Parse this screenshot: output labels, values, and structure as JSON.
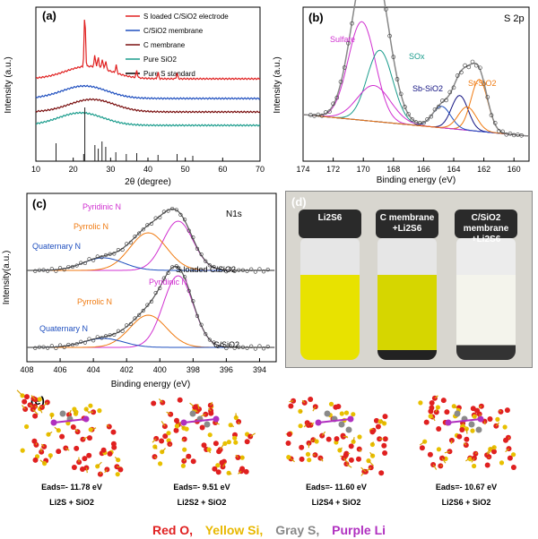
{
  "panels": {
    "a": {
      "label": "(a)",
      "xlabel": "2θ  (degree)",
      "ylabel": "Intensity  (a.u.)",
      "xticks": [
        "10",
        "20",
        "30",
        "40",
        "50",
        "60",
        "70"
      ],
      "legend": [
        "S loaded C/SiO2 electrode",
        "C/SiO2 membrane",
        "C membrane",
        "Pure SiO2",
        "Pure S standard"
      ]
    },
    "b": {
      "label": "(b)",
      "title": "S 2p",
      "xlabel": "Binding energy  (eV)",
      "ylabel": "Intensity (a.u.)",
      "xticks": [
        "174",
        "172",
        "170",
        "168",
        "166",
        "164",
        "162",
        "160"
      ],
      "annotations": [
        "Sulfate",
        "SOx",
        "Sb-SiO2",
        "St-SiO2"
      ]
    },
    "c": {
      "label": "(c)",
      "title": "N1s",
      "xlabel": "Binding energy (eV)",
      "ylabel": "Intensity(a.u.)",
      "xticks": [
        "408",
        "406",
        "404",
        "402",
        "400",
        "398",
        "396",
        "394"
      ],
      "annotations": [
        "Pyridinic N",
        "Pyrrolic N",
        "Quaternary N",
        "S loaded C/SiO2",
        "Pyridinic N",
        "Pyrrolic N",
        "Quaternary N",
        "C/SiO2"
      ]
    },
    "d": {
      "label": "(d)",
      "vials": [
        "Li2S6",
        "C  membrane +Li2S6",
        "C/SiO2 membrane +Li2S6"
      ]
    },
    "e": {
      "label": "(e)",
      "models": [
        {
          "energy": "Eads=- 11.78 eV",
          "system": "Li2S + SiO2"
        },
        {
          "energy": "Eads=- 9.51 eV",
          "system": "Li2S2 + SiO2"
        },
        {
          "energy": "Eads=- 11.60 eV",
          "system": "Li2S4 + SiO2"
        },
        {
          "energy": "Eads=- 10.67 eV",
          "system": "Li2S6 + SiO2"
        }
      ],
      "legend": [
        "Red O,",
        "Yellow Si,",
        "Gray S,",
        "Purple Li"
      ]
    }
  },
  "colors": {
    "red": "#e02020",
    "blue": "#1f4fbf",
    "darkred": "#7a1010",
    "teal": "#1a9c8c",
    "black": "#000000",
    "magenta": "#d030d0",
    "orange": "#f07a10",
    "navy": "#101080"
  },
  "chart_data": [
    {
      "type": "line",
      "title": "",
      "xlabel": "2θ  (degree)",
      "ylabel": "Intensity  (a.u.)",
      "xlim": [
        10,
        70
      ],
      "series": [
        {
          "name": "S loaded C/SiO2 electrode",
          "peaks_2theta": [
            23.1,
            25.8,
            26.7,
            27.8,
            28.7,
            31.5,
            37.0,
            42.7,
            47.8
          ]
        },
        {
          "name": "C/SiO2 membrane",
          "broad_peak_2theta": 23
        },
        {
          "name": "C membrane",
          "broad_peak_2theta": 25
        },
        {
          "name": "Pure SiO2",
          "broad_peak_2theta": 22
        },
        {
          "name": "Pure S standard",
          "stick_2theta": [
            15.4,
            22.8,
            23.1,
            25.8,
            26.7,
            27.7,
            28.7,
            31.4,
            34.2,
            37.0,
            42.7,
            47.8,
            52.0
          ]
        }
      ]
    },
    {
      "type": "line",
      "title": "S 2p",
      "xlabel": "Binding energy  (eV)",
      "ylabel": "Intensity (a.u.)",
      "xlim": [
        174,
        159
      ],
      "components": [
        {
          "name": "Sulfate",
          "center_eV": 170.1
        },
        {
          "name": "SOx",
          "center_eV": 168.9
        },
        {
          "name": "Sb-SiO2",
          "center_eV": 163.6
        },
        {
          "name": "St-SiO2",
          "center_eV": 162.3
        }
      ]
    },
    {
      "type": "line",
      "title": "N1s",
      "xlabel": "Binding energy (eV)",
      "ylabel": "Intensity(a.u.)",
      "xlim": [
        408,
        393
      ],
      "components": [
        {
          "name": "Pyridinic N",
          "center_eV": 398.6
        },
        {
          "name": "Pyrrolic N",
          "center_eV": 400.5
        },
        {
          "name": "Quaternary N",
          "center_eV": 402.5
        }
      ]
    }
  ]
}
